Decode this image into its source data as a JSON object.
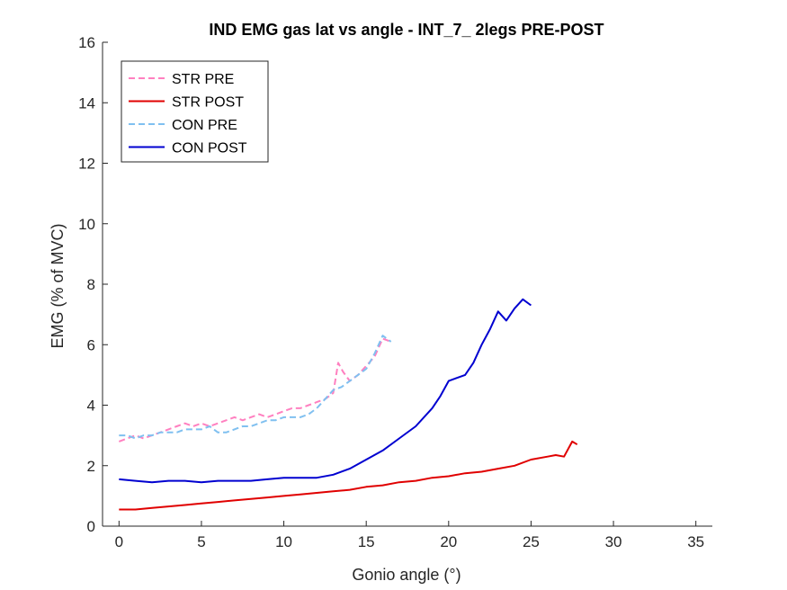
{
  "chart_data": {
    "type": "line",
    "title": "IND EMG gas lat vs angle - INT_7_ 2legs PRE-POST",
    "xlabel": "Gonio angle (°)",
    "ylabel": "EMG (% of MVC)",
    "xlim": [
      -1,
      36
    ],
    "ylim": [
      0,
      16
    ],
    "xticks": [
      0,
      5,
      10,
      15,
      20,
      25,
      30,
      35
    ],
    "yticks": [
      0,
      2,
      4,
      6,
      8,
      10,
      12,
      14,
      16
    ],
    "grid": false,
    "legend_position": "top-left",
    "series": [
      {
        "name": "STR PRE",
        "color": "#ff80c0",
        "style": "dashed",
        "x": [
          0,
          0.5,
          1,
          1.5,
          2,
          2.5,
          3,
          3.5,
          4,
          4.5,
          5,
          5.5,
          6,
          6.5,
          7,
          7.5,
          8,
          8.5,
          9,
          9.5,
          10,
          10.5,
          11,
          11.5,
          12,
          12.5,
          13,
          13.3,
          13.6,
          14,
          14.5,
          15,
          15.5,
          16,
          16.5
        ],
        "y": [
          2.8,
          2.9,
          3.0,
          2.9,
          3.0,
          3.1,
          3.2,
          3.3,
          3.4,
          3.3,
          3.4,
          3.3,
          3.4,
          3.5,
          3.6,
          3.5,
          3.6,
          3.7,
          3.6,
          3.7,
          3.8,
          3.9,
          3.9,
          4.0,
          4.1,
          4.2,
          4.4,
          5.4,
          5.1,
          4.8,
          5.0,
          5.3,
          5.6,
          6.2,
          6.1
        ]
      },
      {
        "name": "STR POST",
        "color": "#e00000",
        "style": "solid",
        "x": [
          0,
          1,
          2,
          3,
          4,
          5,
          6,
          7,
          8,
          9,
          10,
          11,
          12,
          13,
          14,
          15,
          16,
          17,
          18,
          19,
          20,
          21,
          22,
          23,
          24,
          25,
          26,
          26.5,
          27,
          27.5,
          27.8
        ],
        "y": [
          0.55,
          0.55,
          0.6,
          0.65,
          0.7,
          0.75,
          0.8,
          0.85,
          0.9,
          0.95,
          1.0,
          1.05,
          1.1,
          1.15,
          1.2,
          1.3,
          1.35,
          1.45,
          1.5,
          1.6,
          1.65,
          1.75,
          1.8,
          1.9,
          2.0,
          2.2,
          2.3,
          2.35,
          2.3,
          2.8,
          2.7
        ]
      },
      {
        "name": "CON PRE",
        "color": "#80c0f0",
        "style": "dashed",
        "x": [
          0,
          0.5,
          1,
          1.5,
          2,
          2.5,
          3,
          3.5,
          4,
          4.5,
          5,
          5.5,
          6,
          6.5,
          7,
          7.5,
          8,
          8.5,
          9,
          9.5,
          10,
          10.5,
          11,
          11.5,
          12,
          12.5,
          13,
          13.5,
          14,
          14.5,
          15,
          15.5,
          16,
          16.5
        ],
        "y": [
          3.0,
          3.0,
          2.9,
          3.0,
          3.0,
          3.1,
          3.1,
          3.1,
          3.2,
          3.2,
          3.2,
          3.3,
          3.1,
          3.1,
          3.2,
          3.3,
          3.3,
          3.4,
          3.5,
          3.5,
          3.6,
          3.6,
          3.6,
          3.7,
          3.9,
          4.2,
          4.5,
          4.6,
          4.8,
          5.0,
          5.2,
          5.7,
          6.3,
          6.1
        ]
      },
      {
        "name": "CON POST",
        "color": "#0000d0",
        "style": "solid",
        "x": [
          0,
          1,
          2,
          3,
          4,
          5,
          6,
          7,
          8,
          9,
          10,
          11,
          12,
          13,
          14,
          15,
          16,
          17,
          18,
          19,
          19.5,
          20,
          21,
          21.5,
          22,
          22.5,
          23,
          23.5,
          24,
          24.5,
          25
        ],
        "y": [
          1.55,
          1.5,
          1.45,
          1.5,
          1.5,
          1.45,
          1.5,
          1.5,
          1.5,
          1.55,
          1.6,
          1.6,
          1.6,
          1.7,
          1.9,
          2.2,
          2.5,
          2.9,
          3.3,
          3.9,
          4.3,
          4.8,
          5.0,
          5.4,
          6.0,
          6.5,
          7.1,
          6.8,
          7.2,
          7.5,
          7.3
        ]
      }
    ]
  }
}
